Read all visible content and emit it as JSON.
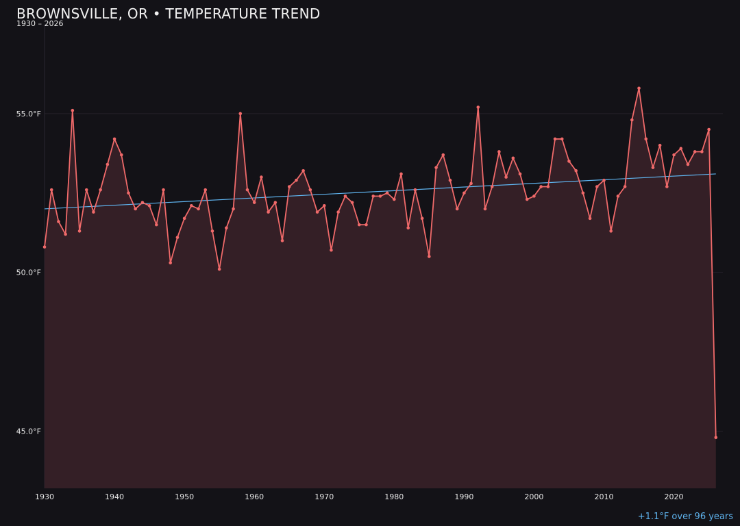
{
  "header": {
    "title": "BROWNSVILLE, OR • TEMPERATURE TREND",
    "subtitle": "1930 – 2026"
  },
  "footer": {
    "trend_note": "+1.1°F over 96 years"
  },
  "colors": {
    "background": "#131217",
    "series_line": "#f06a6a",
    "series_fill": "#341f26",
    "trend_line": "#5fb4ef",
    "grid": "#25212a",
    "text": "#e6e6e6"
  },
  "chart_data": {
    "type": "line",
    "title": "BROWNSVILLE, OR • TEMPERATURE TREND",
    "subtitle": "1930 – 2026",
    "xlabel": "",
    "ylabel": "",
    "xlim": [
      1930,
      2027
    ],
    "ylim": [
      43.2,
      57.8
    ],
    "x_ticks": [
      1930,
      1940,
      1950,
      1960,
      1970,
      1980,
      1990,
      2000,
      2010,
      2020
    ],
    "y_ticks": [
      45.0,
      50.0,
      55.0
    ],
    "y_tick_labels": [
      "45.0°F",
      "50.0°F",
      "55.0°F"
    ],
    "grid": "horizontal",
    "area_fill": true,
    "x": [
      1930,
      1931,
      1932,
      1933,
      1934,
      1935,
      1936,
      1937,
      1938,
      1939,
      1940,
      1941,
      1942,
      1943,
      1944,
      1945,
      1946,
      1947,
      1948,
      1949,
      1950,
      1951,
      1952,
      1953,
      1954,
      1955,
      1956,
      1957,
      1958,
      1959,
      1960,
      1961,
      1962,
      1963,
      1964,
      1965,
      1966,
      1967,
      1968,
      1969,
      1970,
      1971,
      1972,
      1973,
      1974,
      1975,
      1976,
      1977,
      1978,
      1979,
      1980,
      1981,
      1982,
      1983,
      1984,
      1985,
      1986,
      1987,
      1988,
      1989,
      1990,
      1991,
      1992,
      1993,
      1994,
      1995,
      1996,
      1997,
      1998,
      1999,
      2000,
      2001,
      2002,
      2003,
      2004,
      2005,
      2006,
      2007,
      2008,
      2009,
      2010,
      2011,
      2012,
      2013,
      2014,
      2015,
      2016,
      2017,
      2018,
      2019,
      2020,
      2021,
      2022,
      2023,
      2024,
      2025,
      2026
    ],
    "series": [
      {
        "values": [
          50.8,
          52.6,
          51.6,
          51.2,
          55.1,
          51.3,
          52.6,
          51.9,
          52.6,
          53.4,
          54.2,
          53.7,
          52.5,
          52.0,
          52.2,
          52.1,
          51.5,
          52.6,
          50.3,
          51.1,
          51.7,
          52.1,
          52.0,
          52.6,
          51.3,
          50.1,
          51.4,
          52.0,
          55.0,
          52.6,
          52.2,
          53.0,
          51.9,
          52.2,
          51.0,
          52.7,
          52.9,
          53.2,
          52.6,
          51.9,
          52.1,
          50.7,
          51.9,
          52.4,
          52.2,
          51.5,
          51.5,
          52.4,
          52.4,
          52.5,
          52.3,
          53.1,
          51.4,
          52.6,
          51.7,
          50.5,
          53.3,
          53.7,
          52.9,
          52.0,
          52.5,
          52.8,
          55.2,
          52.0,
          52.7,
          53.8,
          53.0,
          53.6,
          53.1,
          52.3,
          52.4,
          52.7,
          52.7,
          54.2,
          54.2,
          53.5,
          53.2,
          52.5,
          51.7,
          52.7,
          52.9,
          51.3,
          52.4,
          52.7,
          54.8,
          55.8,
          54.2,
          53.3,
          54.0,
          52.7,
          53.7,
          53.9,
          53.4,
          53.8,
          53.8,
          54.5,
          44.8
        ]
      }
    ],
    "trend": {
      "x": [
        1930,
        2026
      ],
      "y": [
        52.0,
        53.1
      ],
      "label": "+1.1°F over 96 years"
    }
  }
}
